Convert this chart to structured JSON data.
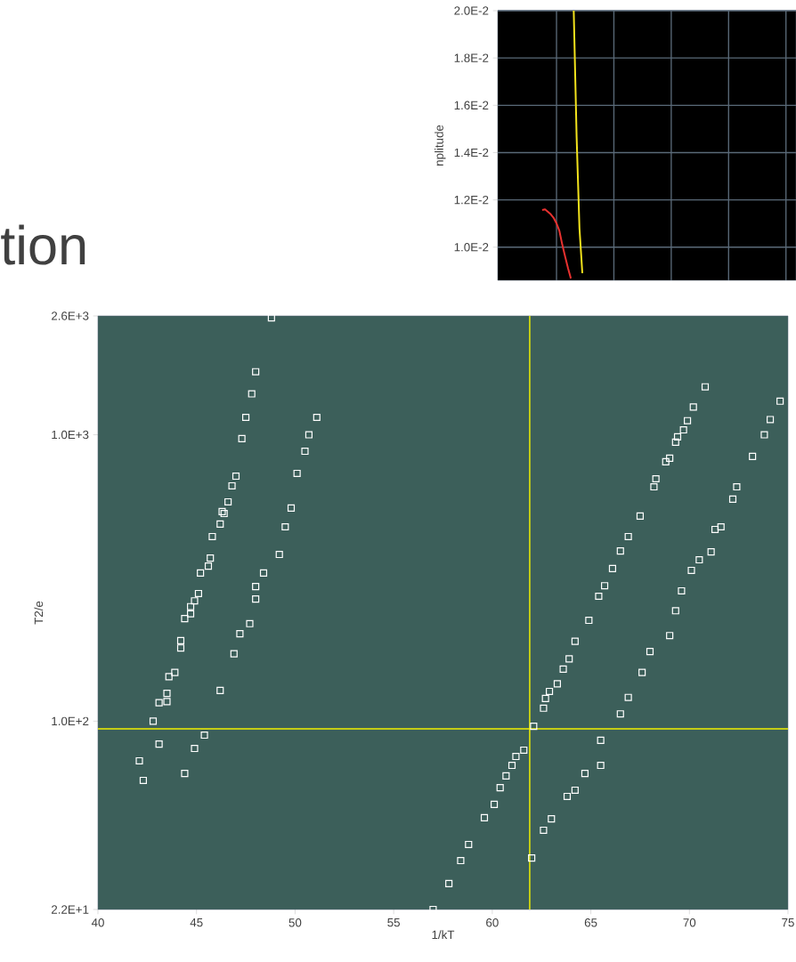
{
  "chart_data": [
    {
      "type": "line",
      "ylabel": "nplitude",
      "ylim": [
        0.0086,
        0.02
      ],
      "grid": true,
      "categories": [
        null,
        null,
        null,
        null,
        null,
        null,
        null,
        null,
        null,
        null,
        null,
        null,
        null,
        null,
        null,
        null,
        null,
        null,
        null,
        null,
        null,
        null,
        null,
        null,
        null,
        null,
        null,
        null,
        null,
        null,
        null,
        null,
        null,
        null,
        null,
        null,
        null,
        null,
        null,
        null,
        null,
        null,
        null,
        null,
        null,
        null,
        null,
        null,
        null,
        null,
        null,
        null,
        null,
        null,
        null,
        null,
        null,
        null,
        null,
        null,
        null,
        null,
        null,
        null,
        null,
        null,
        null,
        null,
        null,
        null,
        null,
        null,
        null,
        null,
        null,
        null,
        null,
        null,
        null,
        null,
        null,
        null,
        null,
        null,
        null,
        null,
        null,
        null,
        null,
        null,
        null,
        null,
        null,
        null,
        null,
        null,
        null,
        null,
        null,
        null,
        null,
        null,
        null,
        null
      ],
      "yticks": [
        {
          "value": 0.01,
          "label": "1.0E-2"
        },
        {
          "value": 0.012,
          "label": "1.2E-2"
        },
        {
          "value": 0.014,
          "label": "1.4E-2"
        },
        {
          "value": 0.016,
          "label": "1.6E-2"
        },
        {
          "value": 0.018,
          "label": "1.8E-2"
        },
        {
          "value": 0.02,
          "label": "2.0E-2"
        }
      ],
      "series": [
        {
          "color": "#f2e21c",
          "values": [
            null,
            null,
            null,
            null,
            null,
            null,
            null,
            null,
            null,
            null,
            null,
            null,
            null,
            null,
            null,
            null,
            null,
            null,
            null,
            null,
            null,
            null,
            null,
            null,
            null,
            null,
            0.02,
            0.0147,
            0.0108,
            0.0089,
            null,
            null,
            null,
            null,
            null,
            null,
            null,
            null,
            null,
            null,
            null,
            null,
            null,
            null,
            null,
            null,
            null,
            null,
            null,
            null,
            null,
            null,
            null,
            null,
            null,
            null,
            null,
            null,
            null,
            null,
            null,
            null,
            null,
            null,
            null,
            null,
            null,
            null,
            null,
            null,
            null,
            null,
            null,
            null,
            null,
            null,
            null,
            null,
            null,
            null,
            null,
            null,
            null,
            null,
            null,
            null,
            null,
            null,
            null,
            null,
            null,
            null,
            null,
            null,
            null,
            null,
            null,
            null,
            null,
            null,
            null,
            null,
            null,
            null
          ]
        },
        {
          "color": "#e8312f",
          "values": [
            null,
            null,
            null,
            null,
            null,
            null,
            null,
            null,
            null,
            null,
            null,
            null,
            null,
            null,
            null,
            0.01157,
            0.0116,
            0.0115,
            0.01139,
            0.01124,
            0.01101,
            0.01069,
            0.01011,
            0.00961,
            0.00912,
            0.00868,
            null,
            null,
            null,
            null,
            null,
            null,
            null,
            null,
            null,
            null,
            null,
            null,
            null,
            null,
            null,
            null,
            null,
            null,
            null,
            null,
            null,
            null,
            null,
            null,
            null,
            null,
            null,
            null,
            null,
            null,
            null,
            null,
            null,
            null,
            null,
            null,
            null,
            null,
            null,
            null,
            null,
            null,
            null,
            null,
            null,
            null,
            null,
            null,
            null,
            null,
            null,
            null,
            null,
            null,
            null,
            null,
            null,
            null,
            null,
            null,
            null,
            null,
            null,
            null,
            null,
            null,
            null,
            null,
            null,
            null,
            null,
            null,
            null,
            null,
            null,
            null,
            null,
            null
          ]
        }
      ]
    },
    {
      "type": "other",
      "annotations": [
        "tion"
      ]
    },
    {
      "type": "scatter",
      "xlabel": "1/kT",
      "ylabel": "T2/e",
      "log": "y",
      "marker": "square",
      "xlim": [
        40,
        75
      ],
      "ylim": [
        22,
        2600
      ],
      "xticks": [
        40,
        45,
        50,
        55,
        60,
        65,
        70,
        75
      ],
      "yticks": [
        {
          "value": 22,
          "label": "2.2E+1"
        },
        {
          "value": 100,
          "label": "1.0E+2"
        },
        {
          "value": 1000,
          "label": "1.0E+3"
        },
        {
          "value": 2600,
          "label": "2.6E+3"
        }
      ],
      "ref_lines": [
        {
          "axis": "x",
          "value": 61.9,
          "color": "#f0f000"
        },
        {
          "axis": "y",
          "value": 94,
          "color": "#f0f000"
        }
      ],
      "x": [
        48.8,
        48.0,
        47.8,
        47.5,
        47.3,
        47.0,
        46.8,
        46.6,
        46.3,
        46.4,
        46.2,
        45.8,
        45.7,
        45.6,
        45.2,
        45.1,
        44.9,
        44.7,
        44.7,
        44.4,
        44.2,
        44.2,
        43.9,
        43.6,
        43.5,
        43.5,
        43.1,
        42.8,
        43.1,
        42.1,
        42.3,
        51.1,
        50.7,
        50.5,
        50.1,
        49.8,
        49.5,
        49.2,
        48.4,
        48.0,
        48.0,
        47.7,
        47.2,
        46.9,
        46.2,
        45.4,
        44.9,
        44.4,
        70.8,
        70.2,
        69.9,
        69.7,
        69.4,
        69.3,
        69.0,
        68.8,
        68.3,
        68.2,
        67.5,
        66.9,
        66.5,
        66.1,
        65.7,
        65.4,
        64.9,
        64.2,
        63.9,
        63.6,
        63.3,
        62.9,
        62.7,
        62.6,
        62.1,
        61.6,
        61.2,
        61.0,
        60.7,
        60.4,
        60.1,
        59.6,
        58.8,
        58.4,
        57.8,
        57.0,
        74.6,
        74.1,
        73.8,
        73.2,
        72.4,
        72.2,
        71.6,
        71.3,
        71.1,
        70.5,
        70.1,
        69.6,
        69.3,
        69.0,
        68.0,
        67.6,
        66.9,
        66.5,
        65.5,
        65.5,
        64.7,
        64.2,
        63.8,
        63.0,
        62.6,
        62.0
      ],
      "series": [
        {
          "color": "#ffffff",
          "values": [
            2560,
            1660,
            1390,
            1150,
            969,
            717,
            663,
            583,
            539,
            531,
            488,
            441,
            371,
            348,
            329,
            279,
            263,
            251,
            237,
            228,
            191,
            180,
            148,
            143,
            125,
            117,
            116,
            100,
            83.2,
            72.7,
            62.1,
            1150,
            1000,
            876,
            733,
            555,
            477,
            382,
            329,
            295,
            267,
            219,
            202,
            172,
            128,
            89.4,
            80.3,
            65.7,
            1470,
            1250,
            1120,
            1040,
            983,
            942,
            828,
            805,
            702,
            658,
            520,
            441,
            393,
            341,
            297,
            273,
            225,
            190,
            165,
            152,
            135,
            127,
            120,
            111,
            96.0,
            79.2,
            75.3,
            70.1,
            64.4,
            58.6,
            51.2,
            46.0,
            37.1,
            32.6,
            27.1,
            22,
            1310,
            1130,
            1000,
            840,
            658,
            596,
            477,
            467,
            390,
            366,
            336,
            285,
            243,
            199,
            175,
            148,
            121,
            106,
            85.7,
            70.1,
            65.7,
            57.4,
            54.6,
            45.6,
            41.6,
            33.3
          ]
        }
      ]
    }
  ]
}
